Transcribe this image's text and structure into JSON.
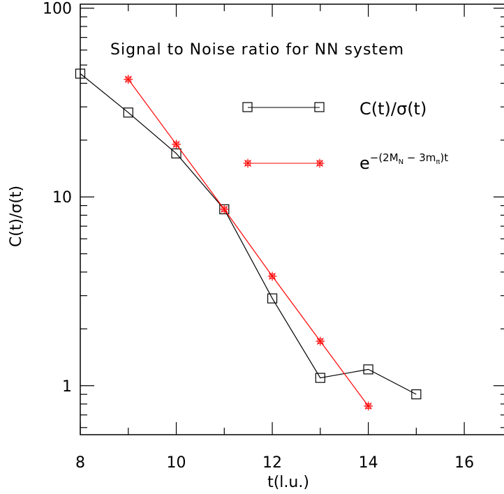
{
  "chart_data": {
    "type": "line",
    "title": "Signal to Noise ratio for NN system",
    "xlabel": "t(l.u.)",
    "ylabel": "C(t)/σ(t)",
    "xlim": [
      8,
      16.9
    ],
    "ylim": [
      0.55,
      105
    ],
    "yscale": "log",
    "xticks": [
      8,
      10,
      12,
      14,
      16
    ],
    "yticks": [
      1,
      10,
      100
    ],
    "ytick_labels": [
      "1",
      "10",
      "100"
    ],
    "grid": false,
    "legend_position": "upper-right",
    "series": [
      {
        "name": "C(t)/σ(t)",
        "color": "#000000",
        "marker": "square",
        "x": [
          8,
          9,
          10,
          11,
          12,
          13,
          14,
          15
        ],
        "y": [
          45,
          28,
          17,
          8.6,
          2.9,
          1.1,
          1.22,
          0.9
        ]
      },
      {
        "name_base": "e",
        "name_exp_prefix": "−(2M",
        "name_sub1": "N",
        "name_exp_mid": " − 3m",
        "name_sub2": "π",
        "name_exp_suffix": ")t",
        "color": "#ff0000",
        "marker": "asterisk",
        "x": [
          9,
          10,
          11,
          12,
          13,
          14
        ],
        "y": [
          42,
          19,
          8.6,
          3.8,
          1.72,
          0.78
        ]
      }
    ]
  }
}
